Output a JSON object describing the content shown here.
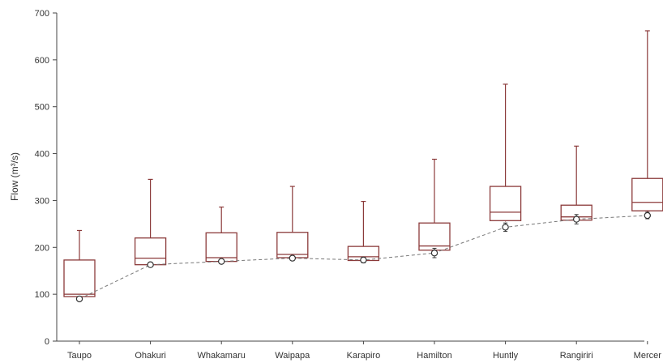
{
  "chart_data": {
    "type": "boxplot",
    "title": "",
    "ylabel": "Flow (m³/s)",
    "xlabel": "",
    "ylim": [
      0,
      700
    ],
    "yticks": [
      0,
      100,
      200,
      300,
      400,
      500,
      600,
      700
    ],
    "grid": false,
    "categories": [
      "Taupo",
      "Ohakuri",
      "Whakamaru",
      "Waipapa",
      "Karapiro",
      "Hamilton",
      "Huntly",
      "Rangiriri",
      "Mercer"
    ],
    "boxes": [
      {
        "category": "Taupo",
        "min": 90,
        "q1": 95,
        "median": 100,
        "q3": 173,
        "max": 236
      },
      {
        "category": "Ohakuri",
        "min": 160,
        "q1": 163,
        "median": 177,
        "q3": 220,
        "max": 345
      },
      {
        "category": "Whakamaru",
        "min": 168,
        "q1": 170,
        "median": 178,
        "q3": 231,
        "max": 286
      },
      {
        "category": "Waipapa",
        "min": 175,
        "q1": 178,
        "median": 185,
        "q3": 232,
        "max": 330
      },
      {
        "category": "Karapiro",
        "min": 170,
        "q1": 172,
        "median": 180,
        "q3": 202,
        "max": 298
      },
      {
        "category": "Hamilton",
        "min": 190,
        "q1": 194,
        "median": 203,
        "q3": 252,
        "max": 388
      },
      {
        "category": "Huntly",
        "min": 255,
        "q1": 257,
        "median": 275,
        "q3": 330,
        "max": 548
      },
      {
        "category": "Rangiriri",
        "min": 255,
        "q1": 258,
        "median": 265,
        "q3": 290,
        "max": 416
      },
      {
        "category": "Mercer",
        "min": 275,
        "q1": 278,
        "median": 296,
        "q3": 347,
        "max": 662
      }
    ],
    "point_series": {
      "style": "dashed-line-with-circle-markers",
      "values": [
        90,
        163,
        170,
        177,
        173,
        188,
        243,
        260,
        268
      ],
      "error": [
        4,
        3,
        3,
        3,
        6,
        10,
        9,
        10,
        7
      ]
    },
    "colors": {
      "box": "#8b3a3a",
      "line": "#777777",
      "marker": "#333333",
      "axis": "#444444"
    }
  }
}
